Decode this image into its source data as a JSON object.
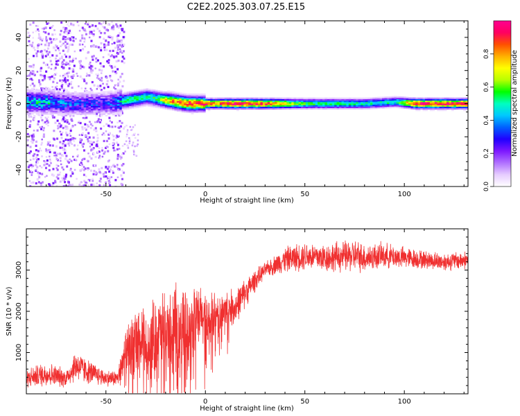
{
  "figure": {
    "title": "C2E2.2025.303.07.25.E15"
  },
  "chart_data": [
    {
      "type": "heatmap",
      "xlabel": "Height of straight line (km)",
      "ylabel": "Frequency (Hz)",
      "xlim": [
        -90,
        132
      ],
      "ylim": [
        -50,
        50
      ],
      "x_ticks": [
        -50,
        0,
        50,
        100
      ],
      "y_ticks": [
        -40,
        -20,
        0,
        20,
        40
      ],
      "colorbar": {
        "label": "Normalized spectral amplitude",
        "range": [
          0,
          1
        ],
        "ticks": [
          "0.0",
          "0.2",
          "0.4",
          "0.6",
          "0.8"
        ],
        "colors": [
          "#ffffff",
          "#e6ccff",
          "#b070ff",
          "#7d18ff",
          "#2000ff",
          "#0060ff",
          "#00c8ff",
          "#00ffc0",
          "#00ff00",
          "#b8ff00",
          "#ffff00",
          "#ffb000",
          "#ff5000",
          "#ff0060",
          "#ff0090"
        ]
      },
      "ridge": {
        "x": [
          -90,
          -80,
          -70,
          -60,
          -50,
          -45,
          -40,
          -35,
          -30,
          -25,
          -20,
          -15,
          -10,
          -5,
          0,
          5,
          10,
          20,
          30,
          50,
          80,
          95,
          105,
          132
        ],
        "center_freq": [
          1,
          1,
          0,
          0,
          0,
          1,
          2,
          3,
          4,
          3,
          2,
          1,
          0,
          0,
          0,
          0,
          0,
          0,
          0,
          0,
          0,
          1,
          0,
          0
        ],
        "peak_amplitude": [
          0.45,
          0.45,
          0.35,
          0.3,
          0.3,
          0.4,
          0.55,
          0.55,
          0.5,
          0.55,
          0.75,
          0.85,
          0.9,
          0.9,
          0.92,
          0.8,
          0.95,
          0.97,
          0.9,
          0.55,
          0.5,
          0.5,
          0.95,
          0.95
        ]
      },
      "grid": false
    },
    {
      "type": "line",
      "xlabel": "Height of straight line (km)",
      "ylabel": "SNR (10 * v/v)",
      "xlim": [
        -90,
        132
      ],
      "ylim": [
        0,
        4000
      ],
      "x_ticks": [
        -50,
        0,
        50,
        100
      ],
      "y_ticks": [
        1000,
        2000,
        3000
      ],
      "series": [
        {
          "color": "#f03030",
          "x": [
            -90,
            -80,
            -70,
            -65,
            -60,
            -50,
            -44,
            -40,
            -35,
            -30,
            -25,
            -20,
            -15,
            -10,
            -5,
            0,
            5,
            10,
            15,
            20,
            25,
            30,
            40,
            50,
            60,
            75,
            80,
            90,
            100,
            110,
            120,
            132
          ],
          "mean": [
            380,
            480,
            380,
            700,
            550,
            380,
            380,
            900,
            1200,
            1150,
            1350,
            1450,
            1550,
            1600,
            1750,
            1900,
            1800,
            2050,
            2100,
            2450,
            2750,
            3000,
            3250,
            3350,
            3300,
            3350,
            3300,
            3350,
            3300,
            3250,
            3200,
            3250
          ],
          "noise": [
            250,
            350,
            250,
            450,
            350,
            220,
            220,
            800,
            1000,
            1100,
            1200,
            1250,
            1200,
            1100,
            1000,
            800,
            700,
            550,
            500,
            400,
            300,
            200,
            350,
            400,
            400,
            450,
            400,
            350,
            300,
            250,
            250,
            250
          ]
        }
      ],
      "grid": false
    }
  ]
}
